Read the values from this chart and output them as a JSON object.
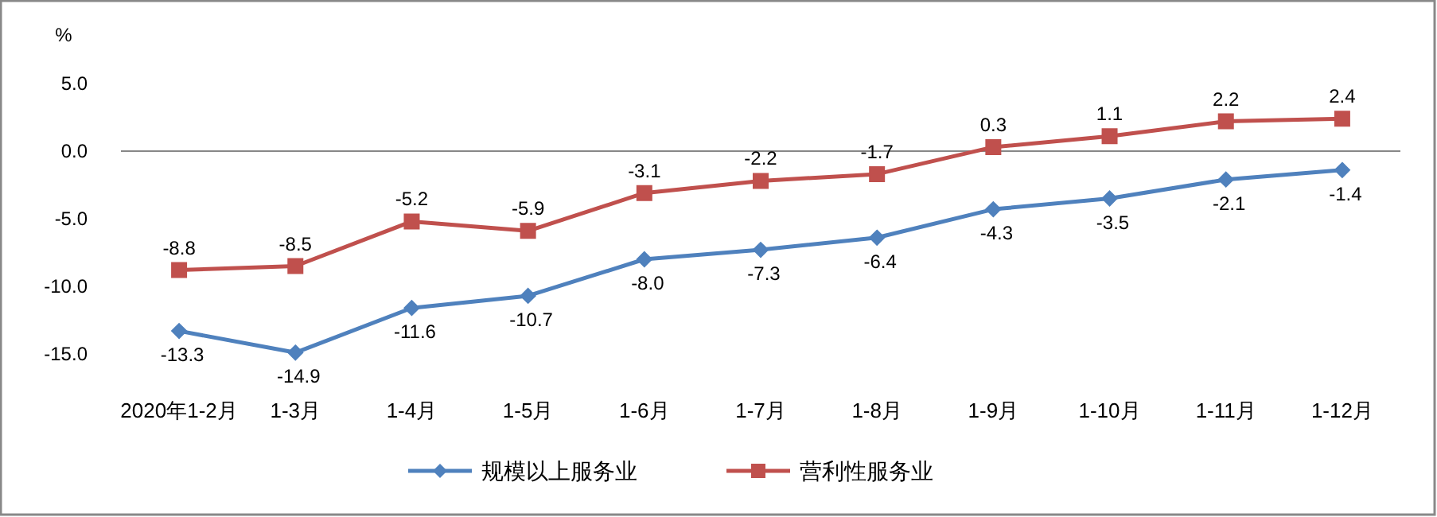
{
  "chart_data": {
    "type": "line",
    "ylabel": "%",
    "categories": [
      "2020年1-2月",
      "1-3月",
      "1-4月",
      "1-5月",
      "1-6月",
      "1-7月",
      "1-8月",
      "1-9月",
      "1-10月",
      "1-11月",
      "1-12月"
    ],
    "series": [
      {
        "name": "规模以上服务业",
        "color": "#4f81bd",
        "marker": "diamond",
        "values": [
          -13.3,
          -14.9,
          -11.6,
          -10.7,
          -8.0,
          -7.3,
          -6.4,
          -4.3,
          -3.5,
          -2.1,
          -1.4
        ],
        "value_labels": [
          "-13.3",
          "-14.9",
          "-11.6",
          "-10.7",
          "-8.0",
          "-7.3",
          "-6.4",
          "-4.3",
          "-3.5",
          "-2.1",
          "-1.4"
        ]
      },
      {
        "name": "营利性服务业",
        "color": "#c0504d",
        "marker": "square",
        "values": [
          -8.8,
          -8.5,
          -5.2,
          -5.9,
          -3.1,
          -2.2,
          -1.7,
          0.3,
          1.1,
          2.2,
          2.4
        ],
        "value_labels": [
          "-8.8",
          "-8.5",
          "-5.2",
          "-5.9",
          "-3.1",
          "-2.2",
          "-1.7",
          "0.3",
          "1.1",
          "2.2",
          "2.4"
        ]
      }
    ],
    "ylim": [
      -15,
      5
    ],
    "yticks": [
      {
        "value": -15,
        "label": "-15.0"
      },
      {
        "value": -10,
        "label": "-10.0"
      },
      {
        "value": -5,
        "label": "-5.0"
      },
      {
        "value": 0,
        "label": "0.0"
      },
      {
        "value": 5,
        "label": "5.0"
      }
    ],
    "legend": "bottom",
    "line_style": "solid"
  }
}
